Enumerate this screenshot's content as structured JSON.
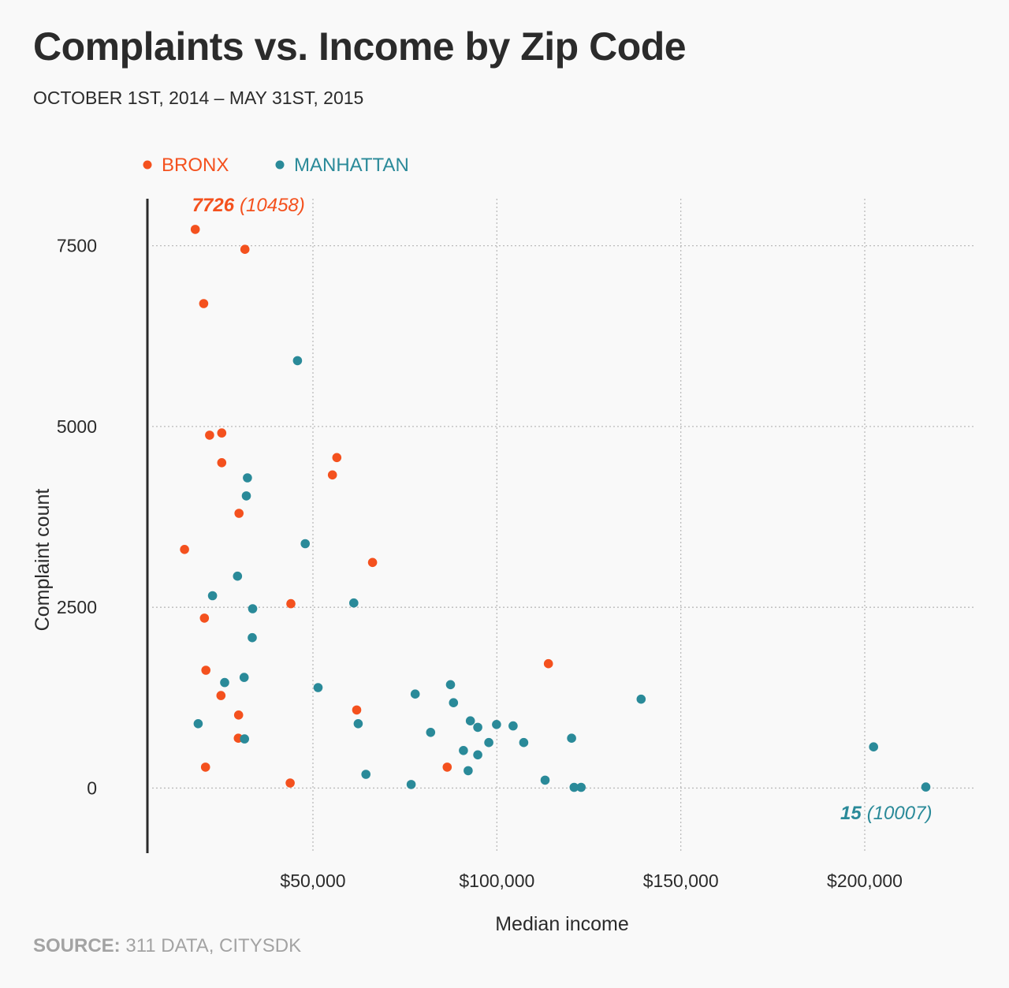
{
  "header": {
    "title": "Complaints vs. Income by Zip Code",
    "subtitle": "OCTOBER 1ST, 2014 – MAY 31ST, 2015"
  },
  "footer": {
    "source_label": "SOURCE:",
    "source_text": "311 DATA, CITYSDK"
  },
  "colors": {
    "bronx": "#f4511e",
    "manhattan": "#2a8a99",
    "text": "#2b2b2b",
    "grid": "#bbbbbb",
    "source": "#a3a3a3"
  },
  "chart_data": {
    "type": "scatter",
    "title": "Complaints vs. Income by Zip Code",
    "subtitle": "OCTOBER 1ST, 2014 – MAY 31ST, 2015",
    "xlabel": "Median income",
    "ylabel": "Complaint count",
    "xlim": [
      5000,
      230000
    ],
    "ylim": [
      -900,
      8150
    ],
    "xticks": [
      50000,
      100000,
      150000,
      200000
    ],
    "xtick_labels": [
      "$50,000",
      "$100,000",
      "$150,000",
      "$200,000"
    ],
    "yticks": [
      0,
      2500,
      5000,
      7500
    ],
    "ytick_labels": [
      "0",
      "2500",
      "5000",
      "7500"
    ],
    "grid": true,
    "legend_position": "top-left",
    "series": [
      {
        "name": "BRONX",
        "color": "#f4511e",
        "points": [
          [
            18000,
            7726
          ],
          [
            31500,
            7450
          ],
          [
            20300,
            6700
          ],
          [
            21900,
            4880
          ],
          [
            25200,
            4910
          ],
          [
            25200,
            4500
          ],
          [
            56500,
            4570
          ],
          [
            55300,
            4330
          ],
          [
            29900,
            3800
          ],
          [
            15100,
            3300
          ],
          [
            66200,
            3120
          ],
          [
            44000,
            2550
          ],
          [
            20500,
            2350
          ],
          [
            20900,
            1630
          ],
          [
            114000,
            1720
          ],
          [
            25000,
            1280
          ],
          [
            61900,
            1080
          ],
          [
            29800,
            1010
          ],
          [
            29700,
            690
          ],
          [
            86500,
            290
          ],
          [
            20800,
            290
          ],
          [
            43800,
            70
          ]
        ]
      },
      {
        "name": "MANHATTAN",
        "color": "#2a8a99",
        "points": [
          [
            45800,
            5910
          ],
          [
            32200,
            4290
          ],
          [
            31900,
            4040
          ],
          [
            47900,
            3380
          ],
          [
            29500,
            2930
          ],
          [
            22700,
            2660
          ],
          [
            61100,
            2560
          ],
          [
            33600,
            2480
          ],
          [
            33500,
            2080
          ],
          [
            26000,
            1460
          ],
          [
            31300,
            1530
          ],
          [
            51400,
            1390
          ],
          [
            87400,
            1430
          ],
          [
            77800,
            1300
          ],
          [
            88200,
            1180
          ],
          [
            139200,
            1230
          ],
          [
            18800,
            890
          ],
          [
            62300,
            890
          ],
          [
            92800,
            930
          ],
          [
            94800,
            840
          ],
          [
            99900,
            880
          ],
          [
            104400,
            860
          ],
          [
            82000,
            770
          ],
          [
            31400,
            680
          ],
          [
            120300,
            690
          ],
          [
            97800,
            630
          ],
          [
            107300,
            630
          ],
          [
            90900,
            520
          ],
          [
            94800,
            460
          ],
          [
            202400,
            570
          ],
          [
            92200,
            240
          ],
          [
            64400,
            190
          ],
          [
            113100,
            110
          ],
          [
            76700,
            50
          ],
          [
            121000,
            10
          ],
          [
            122900,
            10
          ],
          [
            216600,
            15
          ]
        ]
      }
    ],
    "annotations": [
      {
        "series": "BRONX",
        "value": "7726",
        "label": "(10458)",
        "x": 18000,
        "y": 7726,
        "align": "left"
      },
      {
        "series": "MANHATTAN",
        "value": "15",
        "label": "(10007)",
        "x": 216600,
        "y": 15,
        "align": "right"
      }
    ]
  }
}
